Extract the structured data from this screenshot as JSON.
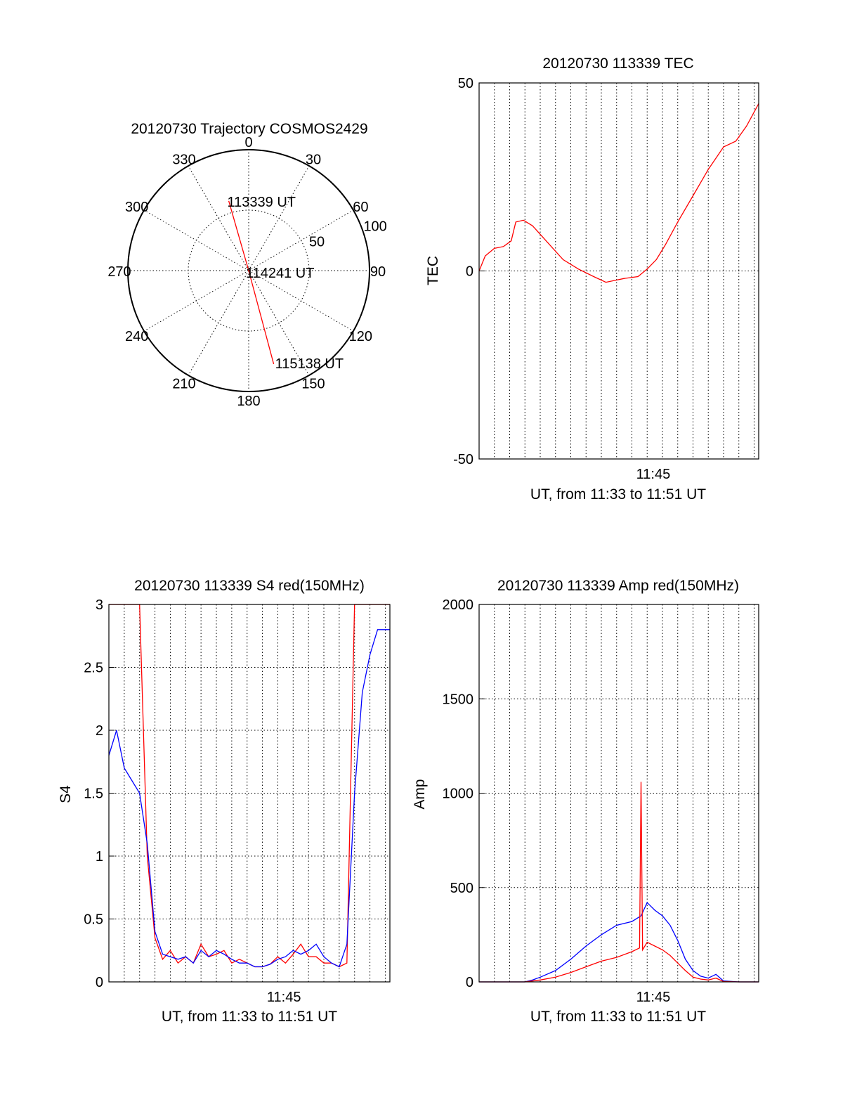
{
  "chart_data": [
    {
      "type": "polar",
      "title": "20120730 Trajectory COSMOS2429",
      "angle_ticks": [
        0,
        30,
        60,
        90,
        120,
        150,
        180,
        210,
        240,
        270,
        300,
        330
      ],
      "radius_ticks": [
        50,
        100
      ],
      "rmax": 100,
      "grid": true,
      "trajectory": {
        "color": "#ff0000",
        "points": [
          {
            "az": 344,
            "el": 30,
            "label": "113339 UT"
          },
          {
            "az": 0,
            "el": 90,
            "label": "114241 UT"
          },
          {
            "az": 165,
            "el": 10,
            "label": "115138 UT"
          }
        ]
      }
    },
    {
      "type": "line",
      "title": "20120730 113339 TEC",
      "ylabel": "TEC",
      "xlabel": "UT, from 11:33 to 11:51 UT",
      "ylim": [
        -50,
        50
      ],
      "yticks": [
        -50,
        0,
        50
      ],
      "xlim_min": [
        0,
        18.3
      ],
      "xticks": [
        {
          "value": 11.4,
          "label": "11:45"
        }
      ],
      "grid": true,
      "series": [
        {
          "color": "#ff0000",
          "x": [
            0,
            0.4,
            1.0,
            1.6,
            2.1,
            2.4,
            2.9,
            3.5,
            4.5,
            5.5,
            6.5,
            7.5,
            8.3,
            8.9,
            9.5,
            10.4,
            11.0,
            11.6,
            12.2,
            13.0,
            14.0,
            15.0,
            16.0,
            16.8,
            17.5,
            18.3
          ],
          "y": [
            0,
            4,
            6,
            6.5,
            8,
            13,
            13.5,
            12,
            7.5,
            3,
            0.5,
            -1.5,
            -3,
            -2.5,
            -2,
            -1.5,
            0.5,
            3,
            7,
            13,
            20,
            27,
            33,
            34.5,
            38.5,
            44.5
          ]
        }
      ]
    },
    {
      "type": "line",
      "title": "20120730 113339 S4 red(150MHz)",
      "ylabel": "S4",
      "xlabel": "UT, from 11:33 to 11:51 UT",
      "ylim": [
        0,
        3
      ],
      "yticks": [
        0,
        0.5,
        1,
        1.5,
        2,
        2.5,
        3
      ],
      "xlim_min": [
        0,
        18.3
      ],
      "xticks": [
        {
          "value": 11.4,
          "label": "11:45"
        }
      ],
      "grid": true,
      "series": [
        {
          "color": "#ff0000",
          "x": [
            0,
            0.5,
            1.0,
            1.5,
            2.0,
            2.5,
            3.0,
            3.5,
            4.0,
            4.5,
            5.0,
            5.5,
            6.0,
            6.5,
            7.0,
            7.5,
            8.0,
            8.5,
            9.0,
            9.5,
            10.0,
            10.5,
            11.0,
            11.5,
            12.0,
            12.5,
            13.0,
            13.5,
            14.0,
            14.5,
            15.0,
            15.5,
            16.0,
            16.5,
            17.0,
            17.5,
            18.3
          ],
          "y": [
            3,
            3,
            3,
            3,
            3,
            1.0,
            0.35,
            0.18,
            0.25,
            0.15,
            0.2,
            0.15,
            0.3,
            0.2,
            0.22,
            0.25,
            0.15,
            0.18,
            0.15,
            0.12,
            0.12,
            0.14,
            0.2,
            0.15,
            0.22,
            0.3,
            0.2,
            0.2,
            0.15,
            0.15,
            0.12,
            0.15,
            3,
            3,
            3,
            3,
            3
          ]
        },
        {
          "color": "#0000ff",
          "x": [
            0,
            0.5,
            1.0,
            1.5,
            2.0,
            2.5,
            3.0,
            3.5,
            4.0,
            4.5,
            5.0,
            5.5,
            6.0,
            6.5,
            7.0,
            7.5,
            8.0,
            8.5,
            9.0,
            9.5,
            10.0,
            10.5,
            11.0,
            11.5,
            12.0,
            12.5,
            13.0,
            13.5,
            14.0,
            14.5,
            15.0,
            15.5,
            16.0,
            16.5,
            17.0,
            17.5,
            18.3
          ],
          "y": [
            1.8,
            2.0,
            1.7,
            1.6,
            1.5,
            1.1,
            0.4,
            0.22,
            0.2,
            0.18,
            0.2,
            0.15,
            0.25,
            0.2,
            0.25,
            0.22,
            0.18,
            0.15,
            0.15,
            0.12,
            0.12,
            0.14,
            0.18,
            0.2,
            0.25,
            0.22,
            0.25,
            0.3,
            0.2,
            0.15,
            0.12,
            0.3,
            1.5,
            2.3,
            2.6,
            2.8,
            2.8
          ]
        }
      ]
    },
    {
      "type": "line",
      "title": "20120730 113339 Amp red(150MHz)",
      "ylabel": "Amp",
      "xlabel": "UT, from 11:33 to 11:51 UT",
      "ylim": [
        0,
        2000
      ],
      "yticks": [
        0,
        500,
        1000,
        1500,
        2000
      ],
      "xlim_min": [
        0,
        18.3
      ],
      "xticks": [
        {
          "value": 11.4,
          "label": "11:45"
        }
      ],
      "grid": true,
      "series": [
        {
          "color": "#0000ff",
          "x": [
            0,
            1,
            2,
            3,
            3.5,
            4,
            5,
            6,
            7,
            8,
            9,
            10,
            10.6,
            11,
            11.5,
            12,
            12.5,
            13,
            13.5,
            14,
            14.5,
            15,
            15.5,
            16,
            17,
            18.3
          ],
          "y": [
            0,
            0,
            0,
            0,
            10,
            25,
            60,
            120,
            190,
            250,
            300,
            320,
            350,
            420,
            380,
            350,
            300,
            220,
            120,
            60,
            30,
            20,
            40,
            5,
            0,
            0
          ]
        },
        {
          "color": "#ff0000",
          "x": [
            0,
            1,
            2,
            3,
            3.5,
            4,
            5,
            6,
            7,
            8,
            9,
            10,
            10.5,
            10.6,
            10.7,
            11,
            11.5,
            12,
            12.5,
            13,
            13.5,
            14,
            14.5,
            15,
            15.5,
            16,
            17,
            18.3
          ],
          "y": [
            0,
            0,
            0,
            0,
            5,
            10,
            25,
            50,
            80,
            110,
            130,
            160,
            180,
            1060,
            170,
            210,
            190,
            170,
            140,
            100,
            60,
            25,
            15,
            10,
            20,
            2,
            0,
            0
          ]
        }
      ]
    }
  ]
}
